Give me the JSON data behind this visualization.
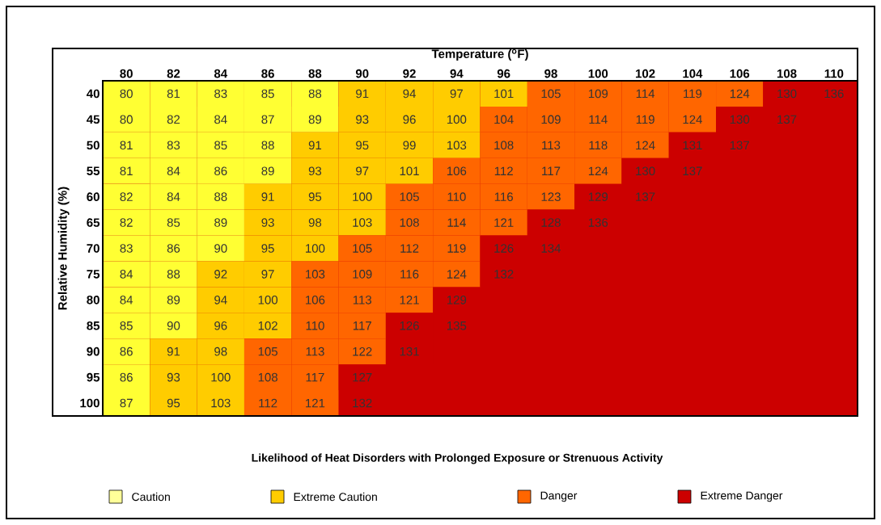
{
  "chart_data": {
    "type": "heatmap",
    "xlabel": "Temperature ($^{o}$F)",
    "ylabel": "Relative Humidity (%)",
    "legend_title": "Likelihood of Heat Disorders with Prolonged Exposure or Strenuous Activity",
    "data_labels": true,
    "categories": [
      "80",
      "82",
      "84",
      "86",
      "88",
      "90",
      "92",
      "94",
      "96",
      "98",
      "100",
      "102",
      "104",
      "106",
      "108",
      "110"
    ],
    "y_categories": [
      "40",
      "45",
      "50",
      "55",
      "60",
      "65",
      "70",
      "75",
      "80",
      "85",
      "90",
      "95",
      "100"
    ],
    "cells": [
      [
        80,
        81,
        83,
        85,
        88,
        91,
        94,
        97,
        101,
        105,
        109,
        114,
        119,
        124,
        130,
        136
      ],
      [
        80,
        82,
        84,
        87,
        89,
        93,
        96,
        100,
        104,
        109,
        114,
        119,
        124,
        130,
        137,
        null
      ],
      [
        81,
        83,
        85,
        88,
        91,
        95,
        99,
        103,
        108,
        113,
        118,
        124,
        131,
        137,
        null,
        null
      ],
      [
        81,
        84,
        86,
        89,
        93,
        97,
        101,
        106,
        112,
        117,
        124,
        130,
        137,
        null,
        null,
        null
      ],
      [
        82,
        84,
        88,
        91,
        95,
        100,
        105,
        110,
        116,
        123,
        129,
        137,
        null,
        null,
        null,
        null
      ],
      [
        82,
        85,
        89,
        93,
        98,
        103,
        108,
        114,
        121,
        128,
        136,
        null,
        null,
        null,
        null,
        null
      ],
      [
        83,
        86,
        90,
        95,
        100,
        105,
        112,
        119,
        126,
        134,
        null,
        null,
        null,
        null,
        null,
        null
      ],
      [
        84,
        88,
        92,
        97,
        103,
        109,
        116,
        124,
        132,
        null,
        null,
        null,
        null,
        null,
        null,
        null
      ],
      [
        84,
        89,
        94,
        100,
        106,
        113,
        121,
        129,
        null,
        null,
        null,
        null,
        null,
        null,
        null,
        null
      ],
      [
        85,
        90,
        96,
        102,
        110,
        117,
        126,
        135,
        null,
        null,
        null,
        null,
        null,
        null,
        null,
        null
      ],
      [
        86,
        91,
        98,
        105,
        113,
        122,
        131,
        null,
        null,
        null,
        null,
        null,
        null,
        null,
        null,
        null
      ],
      [
        86,
        93,
        100,
        108,
        117,
        127,
        null,
        null,
        null,
        null,
        null,
        null,
        null,
        null,
        null,
        null
      ],
      [
        87,
        95,
        103,
        112,
        121,
        132,
        null,
        null,
        null,
        null,
        null,
        null,
        null,
        null,
        null,
        null
      ]
    ],
    "colors": [
      [
        "#ffff33",
        "#ffff33",
        "#ffff33",
        "#ffff33",
        "#ffff33",
        "#ffcc00",
        "#ffcc00",
        "#ffcc00",
        "#ffcc00",
        "#ff6600",
        "#ff6600",
        "#ff6600",
        "#ff6600",
        "#ff6600",
        "#cc0000",
        "#cc0000"
      ],
      [
        "#ffff33",
        "#ffff33",
        "#ffff33",
        "#ffff33",
        "#ffff33",
        "#ffcc00",
        "#ffcc00",
        "#ffcc00",
        "#ff6600",
        "#ff6600",
        "#ff6600",
        "#ff6600",
        "#ff6600",
        "#cc0000",
        "#cc0000",
        "#cc0000"
      ],
      [
        "#ffff33",
        "#ffff33",
        "#ffff33",
        "#ffff33",
        "#ffcc00",
        "#ffcc00",
        "#ffcc00",
        "#ffcc00",
        "#ff6600",
        "#ff6600",
        "#ff6600",
        "#ff6600",
        "#cc0000",
        "#cc0000",
        "#cc0000",
        "#cc0000"
      ],
      [
        "#ffff33",
        "#ffff33",
        "#ffff33",
        "#ffff33",
        "#ffcc00",
        "#ffcc00",
        "#ffcc00",
        "#ff6600",
        "#ff6600",
        "#ff6600",
        "#ff6600",
        "#cc0000",
        "#cc0000",
        "#cc0000",
        "#cc0000",
        "#cc0000"
      ],
      [
        "#ffff33",
        "#ffff33",
        "#ffff33",
        "#ffcc00",
        "#ffcc00",
        "#ffcc00",
        "#ff6600",
        "#ff6600",
        "#ff6600",
        "#ff6600",
        "#cc0000",
        "#cc0000",
        "#cc0000",
        "#cc0000",
        "#cc0000",
        "#cc0000"
      ],
      [
        "#ffff33",
        "#ffff33",
        "#ffff33",
        "#ffcc00",
        "#ffcc00",
        "#ffcc00",
        "#ff6600",
        "#ff6600",
        "#ff6600",
        "#cc0000",
        "#cc0000",
        "#cc0000",
        "#cc0000",
        "#cc0000",
        "#cc0000",
        "#cc0000"
      ],
      [
        "#ffff33",
        "#ffff33",
        "#ffff33",
        "#ffcc00",
        "#ffcc00",
        "#ff6600",
        "#ff6600",
        "#ff6600",
        "#cc0000",
        "#cc0000",
        "#cc0000",
        "#cc0000",
        "#cc0000",
        "#cc0000",
        "#cc0000",
        "#cc0000"
      ],
      [
        "#ffff33",
        "#ffff33",
        "#ffcc00",
        "#ffcc00",
        "#ff6600",
        "#ff6600",
        "#ff6600",
        "#ff6600",
        "#cc0000",
        "#cc0000",
        "#cc0000",
        "#cc0000",
        "#cc0000",
        "#cc0000",
        "#cc0000",
        "#cc0000"
      ],
      [
        "#ffff33",
        "#ffff33",
        "#ffcc00",
        "#ffcc00",
        "#ff6600",
        "#ff6600",
        "#ff6600",
        "#cc0000",
        "#cc0000",
        "#cc0000",
        "#cc0000",
        "#cc0000",
        "#cc0000",
        "#cc0000",
        "#cc0000",
        "#cc0000"
      ],
      [
        "#ffff33",
        "#ffff33",
        "#ffcc00",
        "#ffcc00",
        "#ff6600",
        "#ff6600",
        "#cc0000",
        "#cc0000",
        "#cc0000",
        "#cc0000",
        "#cc0000",
        "#cc0000",
        "#cc0000",
        "#cc0000",
        "#cc0000",
        "#cc0000"
      ],
      [
        "#ffff33",
        "#ffcc00",
        "#ffcc00",
        "#ff6600",
        "#ff6600",
        "#ff6600",
        "#cc0000",
        "#cc0000",
        "#cc0000",
        "#cc0000",
        "#cc0000",
        "#cc0000",
        "#cc0000",
        "#cc0000",
        "#cc0000",
        "#cc0000"
      ],
      [
        "#ffff33",
        "#ffcc00",
        "#ffcc00",
        "#ff6600",
        "#ff6600",
        "#cc0000",
        "#cc0000",
        "#cc0000",
        "#cc0000",
        "#cc0000",
        "#cc0000",
        "#cc0000",
        "#cc0000",
        "#cc0000",
        "#cc0000",
        "#cc0000"
      ],
      [
        "#ffff33",
        "#ffcc00",
        "#ffcc00",
        "#ff6600",
        "#ff6600",
        "#cc0000",
        "#cc0000",
        "#cc0000",
        "#cc0000",
        "#cc0000",
        "#cc0000",
        "#cc0000",
        "#cc0000",
        "#cc0000",
        "#cc0000",
        "#cc0000"
      ]
    ],
    "annotations": [
      "Caution",
      "Extreme Caution",
      "Danger",
      "Extreme Danger"
    ]
  }
}
